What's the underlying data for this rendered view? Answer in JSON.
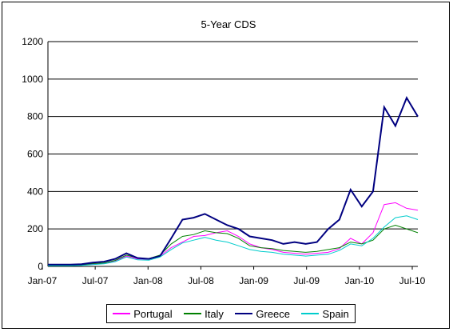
{
  "chart_data": {
    "type": "line",
    "title": "5-Year CDS",
    "xlabel": "",
    "ylabel": "",
    "ylim": [
      0,
      1200
    ],
    "yticks": [
      0,
      200,
      400,
      600,
      800,
      1000,
      1200
    ],
    "xticks": [
      "Jan-07",
      "Jul-07",
      "Jan-08",
      "Jul-08",
      "Jan-09",
      "Jul-09",
      "Jan-10",
      "Jul-10"
    ],
    "grid": "horizontal",
    "legend_position": "bottom",
    "x": [
      "Jan-07",
      "Mar-07",
      "May-07",
      "Jul-07",
      "Sep-07",
      "Nov-07",
      "Jan-08",
      "Mar-08",
      "May-08",
      "Jul-08",
      "Sep-08",
      "Oct-08",
      "Nov-08",
      "Dec-08",
      "Jan-09",
      "Feb-09",
      "Mar-09",
      "Apr-09",
      "May-09",
      "Jun-09",
      "Jul-09",
      "Aug-09",
      "Sep-09",
      "Oct-09",
      "Nov-09",
      "Dec-09",
      "Jan-10",
      "Feb-10",
      "Mar-10",
      "Apr-10",
      "May-10",
      "Jun-10",
      "Jul-10",
      "Aug-10"
    ],
    "series": [
      {
        "name": "Portugal",
        "color": "#ff00ff",
        "width": 1,
        "values": [
          5,
          5,
          5,
          6,
          12,
          15,
          30,
          55,
          40,
          38,
          55,
          100,
          130,
          160,
          165,
          180,
          190,
          160,
          120,
          100,
          90,
          75,
          70,
          65,
          70,
          75,
          95,
          150,
          120,
          180,
          330,
          340,
          310,
          300
        ]
      },
      {
        "name": "Italy",
        "color": "#008000",
        "width": 1,
        "values": [
          7,
          7,
          7,
          8,
          15,
          18,
          32,
          60,
          45,
          42,
          60,
          120,
          160,
          170,
          190,
          180,
          175,
          150,
          110,
          100,
          95,
          85,
          80,
          75,
          80,
          90,
          100,
          130,
          120,
          140,
          200,
          220,
          200,
          180
        ]
      },
      {
        "name": "Greece",
        "color": "#000080",
        "width": 2,
        "values": [
          10,
          10,
          10,
          12,
          20,
          25,
          40,
          70,
          45,
          40,
          55,
          150,
          250,
          260,
          280,
          250,
          220,
          200,
          160,
          150,
          140,
          120,
          130,
          120,
          130,
          200,
          250,
          410,
          320,
          400,
          850,
          750,
          900,
          800
        ]
      },
      {
        "name": "Spain",
        "color": "#00cccc",
        "width": 1,
        "values": [
          4,
          4,
          4,
          5,
          10,
          14,
          25,
          50,
          35,
          33,
          50,
          90,
          125,
          140,
          155,
          140,
          130,
          110,
          90,
          80,
          75,
          65,
          60,
          55,
          60,
          65,
          85,
          120,
          110,
          150,
          210,
          260,
          270,
          250
        ]
      }
    ]
  }
}
